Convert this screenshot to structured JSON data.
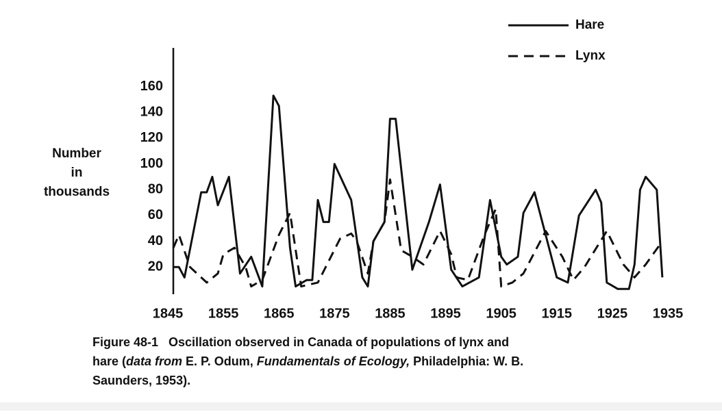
{
  "chart_data": {
    "type": "line",
    "y_label": [
      "Number",
      "in",
      "thousands"
    ],
    "xlim": [
      1845,
      1935
    ],
    "xticks": [
      1845,
      1855,
      1865,
      1875,
      1885,
      1895,
      1905,
      1915,
      1925,
      1935
    ],
    "ylim": [
      0,
      190
    ],
    "yticks": [
      20,
      40,
      60,
      80,
      100,
      120,
      140,
      160
    ],
    "grid": false,
    "series": [
      {
        "name": "Hare",
        "color": "#111111",
        "dash": "solid",
        "x": [
          1846,
          1847,
          1848,
          1851,
          1852,
          1853,
          1854,
          1856,
          1858,
          1860,
          1862,
          1864,
          1865,
          1867,
          1868,
          1870,
          1871,
          1872,
          1873,
          1874,
          1875,
          1878,
          1880,
          1881,
          1882,
          1884,
          1885,
          1886,
          1889,
          1892,
          1894,
          1896,
          1898,
          1901,
          1903,
          1905,
          1906,
          1908,
          1909,
          1911,
          1915,
          1917,
          1919,
          1922,
          1923,
          1924,
          1926,
          1928,
          1929,
          1930,
          1931,
          1933,
          1934
        ],
        "values": [
          20,
          20,
          12,
          78,
          78,
          90,
          68,
          90,
          15,
          28,
          5,
          153,
          145,
          35,
          5,
          10,
          10,
          72,
          55,
          55,
          100,
          72,
          12,
          5,
          40,
          55,
          135,
          135,
          18,
          55,
          84,
          18,
          5,
          12,
          72,
          28,
          22,
          28,
          62,
          78,
          12,
          8,
          60,
          80,
          70,
          8,
          3,
          3,
          22,
          80,
          90,
          80,
          12
        ]
      },
      {
        "name": "Lynx",
        "color": "#111111",
        "dash": "dashed",
        "x": [
          1846,
          1847,
          1849,
          1851,
          1852,
          1854,
          1855,
          1857,
          1859,
          1860,
          1862,
          1865,
          1867,
          1869,
          1872,
          1874,
          1876,
          1878,
          1879,
          1881,
          1882,
          1884,
          1885,
          1887,
          1889,
          1891,
          1894,
          1896,
          1897,
          1899,
          1902,
          1903,
          1904,
          1905,
          1907,
          1909,
          1913,
          1916,
          1918,
          1920,
          1924,
          1927,
          1929,
          1931,
          1934
        ],
        "values": [
          35,
          45,
          20,
          12,
          8,
          15,
          30,
          35,
          20,
          5,
          10,
          45,
          62,
          5,
          8,
          25,
          42,
          46,
          40,
          15,
          40,
          55,
          88,
          33,
          28,
          22,
          48,
          30,
          12,
          10,
          45,
          55,
          65,
          5,
          8,
          15,
          48,
          28,
          10,
          20,
          48,
          22,
          12,
          22,
          40
        ]
      }
    ],
    "caption": [
      [
        {
          "text": "Figure 48-1   Oscillation observed in Canada of populations of lynx and",
          "italic": false
        }
      ],
      [
        {
          "text": "hare (",
          "italic": false
        },
        {
          "text": "data from",
          "italic": true
        },
        {
          "text": " E. P. Odum, ",
          "italic": false
        },
        {
          "text": "Fundamentals of Ecology,",
          "italic": true
        },
        {
          "text": " Philadelphia: W. B.",
          "italic": false
        }
      ],
      [
        {
          "text": "Saunders, 1953).",
          "italic": false
        }
      ]
    ]
  }
}
